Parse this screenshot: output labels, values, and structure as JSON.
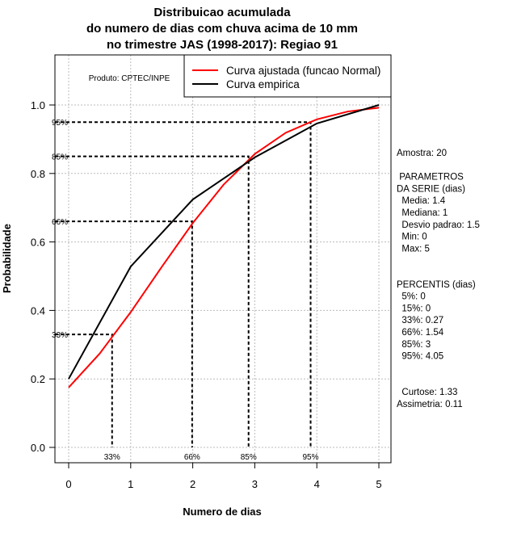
{
  "chart_data": {
    "type": "line",
    "title": [
      "Distribuicao acumulada",
      "do numero de dias com chuva acima de 10 mm",
      "no trimestre JAS (1998-2017): Regiao 91"
    ],
    "xlabel": "Numero de dias",
    "ylabel": "Probabilidade",
    "xlim": [
      0,
      5
    ],
    "ylim": [
      0,
      1
    ],
    "grid": true,
    "x_ticks": [
      "0",
      "1",
      "2",
      "3",
      "4",
      "5"
    ],
    "y_ticks": [
      "0.0",
      "0.2",
      "0.4",
      "0.6",
      "0.8",
      "1.0"
    ],
    "legend": {
      "placement": "top-right",
      "entries": [
        "Curva ajustada (funcao Normal)",
        "Curva empirica"
      ]
    },
    "series": [
      {
        "name": "Curva ajustada (funcao Normal)",
        "color": "#ff0000",
        "x": [
          0,
          0.5,
          1,
          1.5,
          2,
          2.5,
          3,
          3.5,
          4,
          4.5,
          5
        ],
        "y": [
          0.175,
          0.274,
          0.395,
          0.527,
          0.655,
          0.768,
          0.857,
          0.919,
          0.958,
          0.981,
          0.992
        ]
      },
      {
        "name": "Curva empirica",
        "color": "#000000",
        "x": [
          0,
          1,
          2,
          3,
          4,
          5
        ],
        "y": [
          0.2,
          0.528,
          0.724,
          0.847,
          0.946,
          1.0
        ]
      }
    ],
    "percentile_markers": [
      {
        "label": "33%",
        "x": 0.7,
        "y": 0.33
      },
      {
        "label": "66%",
        "x": 1.99,
        "y": 0.66
      },
      {
        "label": "85%",
        "x": 2.9,
        "y": 0.85
      },
      {
        "label": "95%",
        "x": 3.9,
        "y": 0.95
      }
    ],
    "annotation": "Produto: CPTEC/INPE"
  },
  "side_panel": [
    "Amostra: 20",
    "",
    " PARAMETROS",
    "DA SERIE (dias)",
    "  Media: 1.4",
    "  Mediana: 1",
    "  Desvio padrao: 1.5",
    "  Min: 0",
    "  Max: 5",
    "",
    "",
    "PERCENTIS (dias)",
    "  5%: 0",
    "  15%: 0",
    "  33%: 0.27",
    "  66%: 1.54",
    "  85%: 3",
    "  95%: 4.05",
    "",
    "",
    "  Curtose: 1.33",
    "Assimetria: 0.11"
  ]
}
